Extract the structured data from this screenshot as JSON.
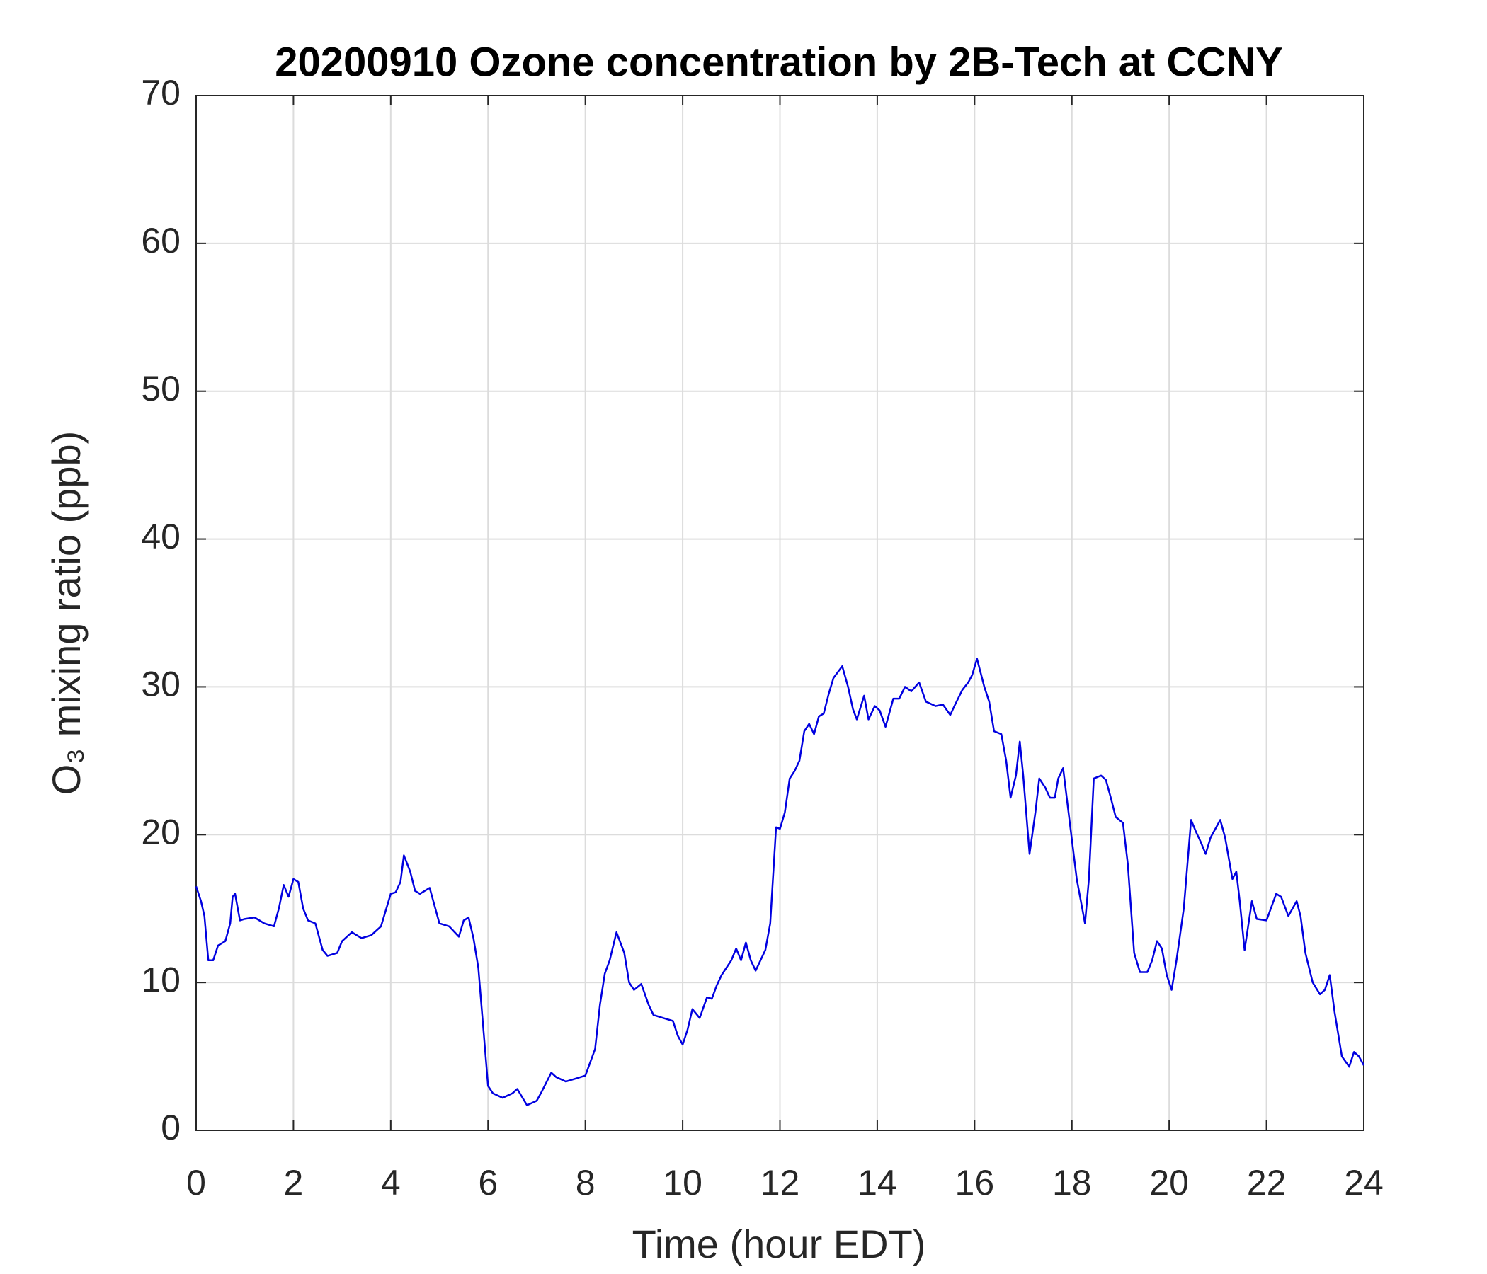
{
  "chart_data": {
    "type": "line",
    "title": "20200910 Ozone concentration by 2B-Tech at CCNY",
    "xlabel": "Time (hour EDT)",
    "ylabel": "O₃ mixing ratio (ppb)",
    "xlim": [
      0,
      24
    ],
    "xticks": [
      0,
      2,
      4,
      6,
      8,
      10,
      12,
      14,
      16,
      18,
      20,
      22,
      24
    ],
    "ylim": [
      0,
      70
    ],
    "yticks": [
      0,
      10,
      20,
      30,
      40,
      50,
      60,
      70
    ],
    "grid": true,
    "x": [
      0,
      0.1,
      0.17,
      0.25,
      0.35,
      0.45,
      0.6,
      0.7,
      0.75,
      0.8,
      0.9,
      1.0,
      1.2,
      1.4,
      1.6,
      1.7,
      1.8,
      1.9,
      2.0,
      2.1,
      2.2,
      2.3,
      2.45,
      2.6,
      2.7,
      2.9,
      3.0,
      3.2,
      3.4,
      3.6,
      3.8,
      4.0,
      4.1,
      4.2,
      4.27,
      4.4,
      4.5,
      4.6,
      4.8,
      5.0,
      5.2,
      5.4,
      5.5,
      5.6,
      5.7,
      5.8,
      5.9,
      6.0,
      6.1,
      6.3,
      6.5,
      6.6,
      6.8,
      7.0,
      7.1,
      7.3,
      7.4,
      7.6,
      7.8,
      8.0,
      8.1,
      8.2,
      8.3,
      8.4,
      8.5,
      8.64,
      8.8,
      8.9,
      9.0,
      9.15,
      9.3,
      9.4,
      9.6,
      9.8,
      9.9,
      10.0,
      10.1,
      10.2,
      10.35,
      10.5,
      10.6,
      10.7,
      10.8,
      11.0,
      11.1,
      11.2,
      11.3,
      11.4,
      11.5,
      11.6,
      11.7,
      11.8,
      11.92,
      12.0,
      12.1,
      12.2,
      12.3,
      12.4,
      12.5,
      12.6,
      12.7,
      12.8,
      12.9,
      13.0,
      13.1,
      13.28,
      13.4,
      13.5,
      13.58,
      13.73,
      13.82,
      13.95,
      14.05,
      14.17,
      14.33,
      14.45,
      14.57,
      14.7,
      14.86,
      15.0,
      15.2,
      15.35,
      15.5,
      15.6,
      15.75,
      15.87,
      15.95,
      16.05,
      16.2,
      16.3,
      16.4,
      16.55,
      16.65,
      16.74,
      16.85,
      16.93,
      17.0,
      17.13,
      17.25,
      17.33,
      17.45,
      17.55,
      17.65,
      17.72,
      17.82,
      17.95,
      18.1,
      18.27,
      18.35,
      18.45,
      18.6,
      18.7,
      18.8,
      18.9,
      19.05,
      19.15,
      19.28,
      19.4,
      19.55,
      19.65,
      19.75,
      19.85,
      19.95,
      20.05,
      20.15,
      20.3,
      20.45,
      20.55,
      20.65,
      20.75,
      20.85,
      21.05,
      21.15,
      21.3,
      21.38,
      21.45,
      21.55,
      21.7,
      21.8,
      22.0,
      22.2,
      22.3,
      22.45,
      22.62,
      22.7,
      22.8,
      22.95,
      23.1,
      23.2,
      23.3,
      23.4,
      23.55,
      23.7,
      23.8,
      23.9,
      24
    ],
    "series": [
      {
        "color": "#0000e0",
        "values": [
          16.5,
          15.5,
          14.5,
          11.5,
          11.5,
          12.5,
          12.8,
          14,
          15.8,
          16,
          14.2,
          14.3,
          14.4,
          14.0,
          13.8,
          15,
          16.6,
          15.8,
          17.0,
          16.8,
          15,
          14.2,
          14,
          12.2,
          11.8,
          12,
          12.8,
          13.4,
          13.0,
          13.2,
          13.8,
          16,
          16.1,
          16.8,
          18.6,
          17.5,
          16.2,
          16,
          16.4,
          14,
          13.8,
          13.1,
          14.2,
          14.4,
          13,
          11,
          7,
          3,
          2.5,
          2.2,
          2.5,
          2.8,
          1.7,
          2.0,
          2.6,
          3.9,
          3.6,
          3.3,
          3.5,
          3.7,
          4.6,
          5.5,
          8.5,
          10.6,
          11.5,
          13.4,
          12,
          10,
          9.5,
          9.9,
          8.5,
          7.8,
          7.6,
          7.4,
          6.4,
          5.8,
          6.8,
          8.2,
          7.6,
          9,
          8.9,
          9.8,
          10.5,
          11.5,
          12.3,
          11.5,
          12.7,
          11.5,
          10.8,
          11.5,
          12.2,
          14,
          20.5,
          20.4,
          21.5,
          23.8,
          24.3,
          25,
          27,
          27.5,
          26.8,
          28,
          28.2,
          29.5,
          30.6,
          31.4,
          30,
          28.5,
          27.8,
          29.4,
          27.8,
          28.7,
          28.4,
          27.3,
          29.2,
          29.2,
          30,
          29.7,
          30.3,
          29,
          28.7,
          28.8,
          28.1,
          28.8,
          29.8,
          30.3,
          30.8,
          31.9,
          30,
          29,
          27,
          26.8,
          25,
          22.5,
          24,
          26.3,
          24,
          18.7,
          21.5,
          23.8,
          23.2,
          22.5,
          22.5,
          23.8,
          24.5,
          21,
          17,
          14,
          17,
          23.8,
          24,
          23.7,
          22.5,
          21.2,
          20.8,
          18,
          12,
          10.7,
          10.7,
          11.5,
          12.8,
          12.3,
          10.5,
          9.5,
          11.5,
          15,
          21,
          20.2,
          19.5,
          18.7,
          19.8,
          21,
          19.8,
          17,
          17.5,
          15.5,
          12.2,
          15.5,
          14.3,
          14.2,
          16,
          15.8,
          14.5,
          15.5,
          14.5,
          12,
          10,
          9.2,
          9.5,
          10.5,
          8,
          5,
          4.3,
          5.3,
          5,
          4.4
        ]
      }
    ]
  }
}
